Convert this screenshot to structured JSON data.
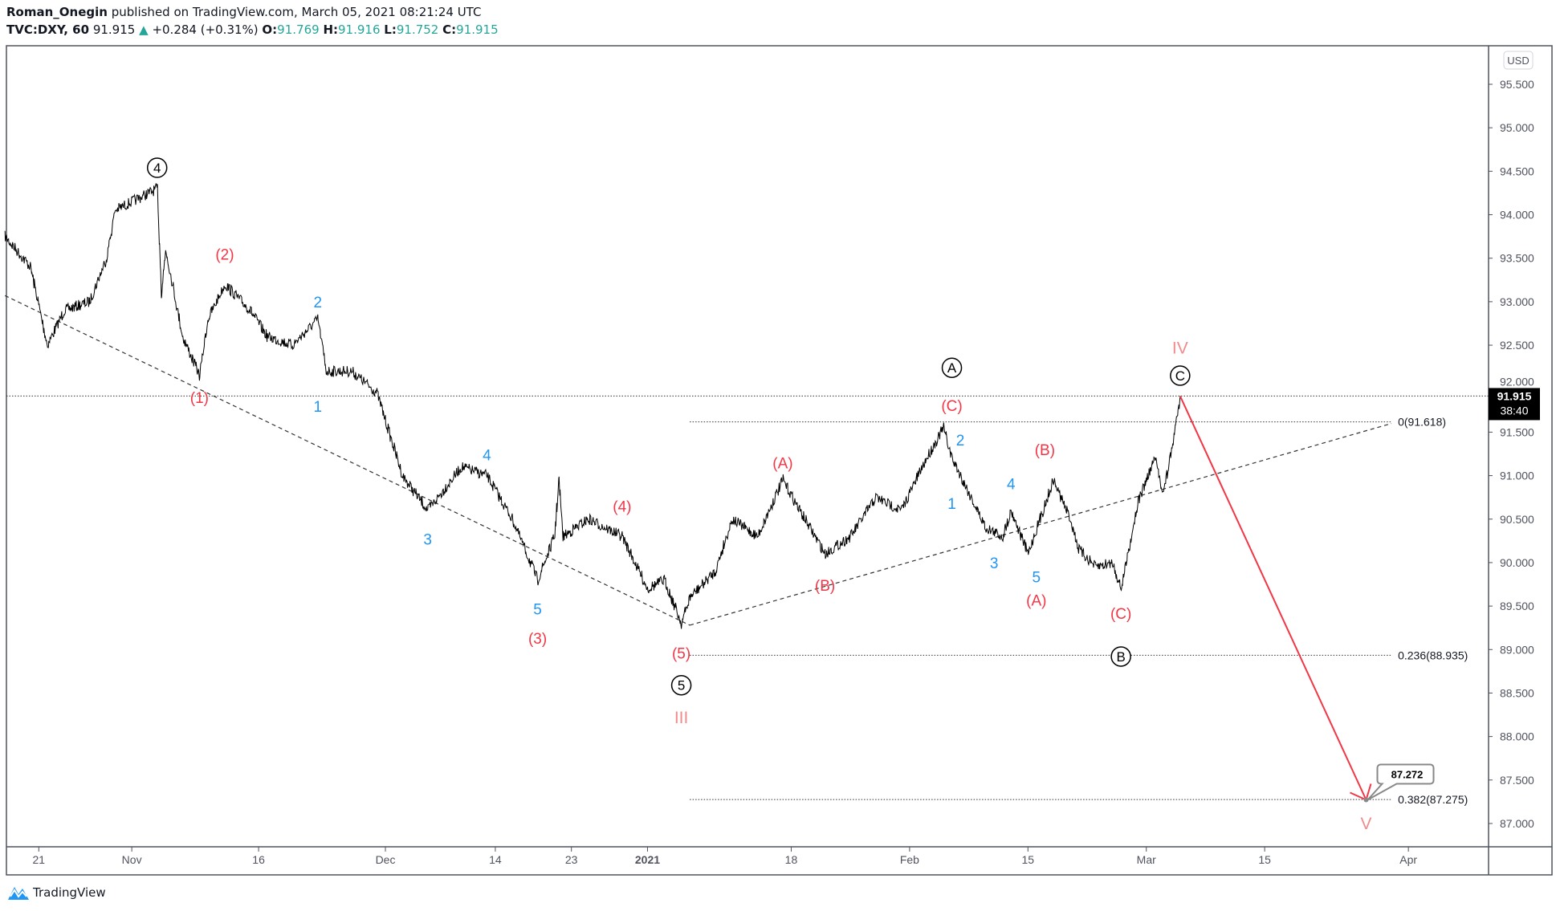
{
  "header": {
    "author": "Roman_Onegin",
    "published_text": "published on TradingView.com, March 05, 2021 08:21:24 UTC",
    "symbol": "TVC:DXY, 60",
    "last": "91.915",
    "change": "+0.284 (+0.31%)",
    "open_label": "O:",
    "open": "91.769",
    "high_label": "H:",
    "high": "91.916",
    "low_label": "L:",
    "low": "91.752",
    "close_label": "C:",
    "close": "91.915"
  },
  "colors": {
    "up": "#26a69a",
    "wave_red": "#f23645",
    "wave_blue": "#2196f3",
    "wave_pink": "#f28b8b",
    "price": "#000000"
  },
  "currency_button": "USD",
  "price_tag": {
    "value": "91.915",
    "countdown": "38:40"
  },
  "callout": "87.272",
  "footer_logo": "TradingView",
  "chart_data": {
    "type": "line",
    "title": "",
    "ylim": [
      86.75,
      95.75
    ],
    "y_ticks": [
      "87.000",
      "87.500",
      "88.000",
      "88.500",
      "89.000",
      "89.500",
      "90.000",
      "90.500",
      "91.000",
      "91.500",
      "92.000",
      "92.500",
      "93.000",
      "93.500",
      "94.000",
      "94.500",
      "95.000",
      "95.500"
    ],
    "x_ticks": [
      {
        "date": "2020-10-21",
        "label": "21"
      },
      {
        "date": "2020-11-01",
        "label": "Nov"
      },
      {
        "date": "2020-11-16",
        "label": "16"
      },
      {
        "date": "2020-12-01",
        "label": "Dec"
      },
      {
        "date": "2020-12-14",
        "label": "14"
      },
      {
        "date": "2020-12-23",
        "label": "23"
      },
      {
        "date": "2021-01-01",
        "label": "2021"
      },
      {
        "date": "2021-01-18",
        "label": "18"
      },
      {
        "date": "2021-02-01",
        "label": "Feb"
      },
      {
        "date": "2021-02-15",
        "label": "15"
      },
      {
        "date": "2021-03-01",
        "label": "Mar"
      },
      {
        "date": "2021-03-15",
        "label": "15"
      },
      {
        "date": "2021-04-01",
        "label": "Apr"
      }
    ],
    "series": [
      {
        "points": [
          [
            "2020-10-17",
            93.75
          ],
          [
            "2020-10-20",
            93.4
          ],
          [
            "2020-10-22",
            92.5
          ],
          [
            "2020-10-24",
            92.9
          ],
          [
            "2020-10-27",
            93.0
          ],
          [
            "2020-10-29",
            93.5
          ],
          [
            "2020-10-30",
            94.05
          ],
          [
            "2020-11-02",
            94.2
          ],
          [
            "2020-11-04",
            94.3
          ],
          [
            "2020-11-04T12",
            93.1
          ],
          [
            "2020-11-05",
            93.6
          ],
          [
            "2020-11-07",
            92.6
          ],
          [
            "2020-11-09",
            92.15
          ],
          [
            "2020-11-10",
            92.8
          ],
          [
            "2020-11-12",
            93.2
          ],
          [
            "2020-11-15",
            92.9
          ],
          [
            "2020-11-17",
            92.6
          ],
          [
            "2020-11-20",
            92.5
          ],
          [
            "2020-11-23",
            92.8
          ],
          [
            "2020-11-24",
            92.2
          ],
          [
            "2020-11-27",
            92.2
          ],
          [
            "2020-11-30",
            91.95
          ],
          [
            "2020-12-03",
            91.0
          ],
          [
            "2020-12-06",
            90.6
          ],
          [
            "2020-12-10",
            91.1
          ],
          [
            "2020-12-13",
            91.0
          ],
          [
            "2020-12-16",
            90.5
          ],
          [
            "2020-12-19",
            89.8
          ],
          [
            "2020-12-21",
            90.3
          ],
          [
            "2020-12-21T12",
            90.95
          ],
          [
            "2020-12-22",
            90.3
          ],
          [
            "2020-12-25",
            90.5
          ],
          [
            "2020-12-29",
            90.3
          ],
          [
            "2021-01-01",
            89.7
          ],
          [
            "2021-01-03",
            89.8
          ],
          [
            "2021-01-05",
            89.3
          ],
          [
            "2021-01-06",
            89.6
          ],
          [
            "2021-01-09",
            89.9
          ],
          [
            "2021-01-11",
            90.5
          ],
          [
            "2021-01-14",
            90.3
          ],
          [
            "2021-01-17",
            90.95
          ],
          [
            "2021-01-19",
            90.6
          ],
          [
            "2021-01-22",
            90.1
          ],
          [
            "2021-01-25",
            90.3
          ],
          [
            "2021-01-28",
            90.75
          ],
          [
            "2021-01-31",
            90.6
          ],
          [
            "2021-02-02",
            91.0
          ],
          [
            "2021-02-03",
            91.2
          ],
          [
            "2021-02-05",
            91.55
          ],
          [
            "2021-02-06",
            91.2
          ],
          [
            "2021-02-07",
            91.0
          ],
          [
            "2021-02-10",
            90.4
          ],
          [
            "2021-02-12",
            90.3
          ],
          [
            "2021-02-13",
            90.6
          ],
          [
            "2021-02-15",
            90.1
          ],
          [
            "2021-02-18",
            90.95
          ],
          [
            "2021-02-20",
            90.5
          ],
          [
            "2021-02-21",
            90.15
          ],
          [
            "2021-02-23",
            89.95
          ],
          [
            "2021-02-25",
            90.0
          ],
          [
            "2021-02-26",
            89.7
          ],
          [
            "2021-02-28",
            90.7
          ],
          [
            "2021-03-02",
            91.2
          ],
          [
            "2021-03-03",
            90.8
          ],
          [
            "2021-03-04",
            91.3
          ],
          [
            "2021-03-05",
            91.915
          ]
        ]
      }
    ],
    "last_price": 91.915,
    "trendlines": [
      {
        "style": "dashed",
        "from": [
          "2020-10-17",
          93.07
        ],
        "to": [
          "2021-01-06",
          89.28
        ]
      },
      {
        "style": "dashed",
        "from": [
          "2021-01-06",
          89.28
        ],
        "to": [
          "2021-03-30",
          91.6
        ]
      }
    ],
    "projection_arrow": {
      "from": [
        "2021-03-05",
        91.915
      ],
      "to": [
        "2021-03-27",
        87.272
      ]
    },
    "fib_levels": [
      {
        "label": "0(91.618)",
        "price": 91.618
      },
      {
        "label": "0.236(88.935)",
        "price": 88.935
      },
      {
        "label": "0.382(87.275)",
        "price": 87.275
      }
    ],
    "fib_range": [
      "2021-01-06",
      "2021-03-30"
    ],
    "annotations": [
      {
        "text": "4",
        "style": "circle",
        "date": "2020-11-04",
        "price": 94.54
      },
      {
        "text": "A",
        "style": "circle",
        "date": "2021-02-06",
        "price": 92.24
      },
      {
        "text": "C",
        "style": "circle",
        "date": "2021-03-05",
        "price": 92.15
      },
      {
        "text": "B",
        "style": "circle",
        "date": "2021-02-26",
        "price": 88.92
      },
      {
        "text": "5",
        "style": "circle",
        "date": "2021-01-05",
        "price": 88.59
      },
      {
        "text": "(2)",
        "style": "red",
        "date": "2020-11-12",
        "price": 93.55
      },
      {
        "text": "(1)",
        "style": "red",
        "date": "2020-11-09",
        "price": 91.9
      },
      {
        "text": "(3)",
        "style": "red",
        "date": "2020-12-19",
        "price": 89.13
      },
      {
        "text": "(4)",
        "style": "red",
        "date": "2020-12-29",
        "price": 90.65
      },
      {
        "text": "(5)",
        "style": "red",
        "date": "2021-01-05",
        "price": 88.96
      },
      {
        "text": "(A)",
        "style": "red",
        "date": "2021-01-17",
        "price": 91.15
      },
      {
        "text": "(B)",
        "style": "red",
        "date": "2021-01-22",
        "price": 89.74
      },
      {
        "text": "(C)",
        "style": "red",
        "date": "2021-02-06",
        "price": 91.81
      },
      {
        "text": "(B)",
        "style": "red",
        "date": "2021-02-17",
        "price": 91.3
      },
      {
        "text": "(A)",
        "style": "red",
        "date": "2021-02-16",
        "price": 89.57
      },
      {
        "text": "(C)",
        "style": "red",
        "date": "2021-02-26",
        "price": 89.42
      },
      {
        "text": "III",
        "style": "pink",
        "date": "2021-01-05",
        "price": 88.22
      },
      {
        "text": "IV",
        "style": "pink",
        "date": "2021-03-05",
        "price": 92.47
      },
      {
        "text": "V",
        "style": "pink",
        "date": "2021-03-27",
        "price": 87.0
      },
      {
        "text": "2",
        "style": "blue",
        "date": "2020-11-23",
        "price": 93.0
      },
      {
        "text": "1",
        "style": "blue",
        "date": "2020-11-23",
        "price": 91.8
      },
      {
        "text": "4",
        "style": "blue",
        "date": "2020-12-13",
        "price": 91.24
      },
      {
        "text": "3",
        "style": "blue",
        "date": "2020-12-06",
        "price": 90.27
      },
      {
        "text": "5",
        "style": "blue",
        "date": "2020-12-19",
        "price": 89.47
      },
      {
        "text": "2",
        "style": "blue",
        "date": "2021-02-07",
        "price": 91.41
      },
      {
        "text": "1",
        "style": "blue",
        "date": "2021-02-06",
        "price": 90.68
      },
      {
        "text": "4",
        "style": "blue",
        "date": "2021-02-13",
        "price": 90.91
      },
      {
        "text": "3",
        "style": "blue",
        "date": "2021-02-11",
        "price": 90.0
      },
      {
        "text": "5",
        "style": "blue",
        "date": "2021-02-16",
        "price": 89.84
      }
    ]
  }
}
